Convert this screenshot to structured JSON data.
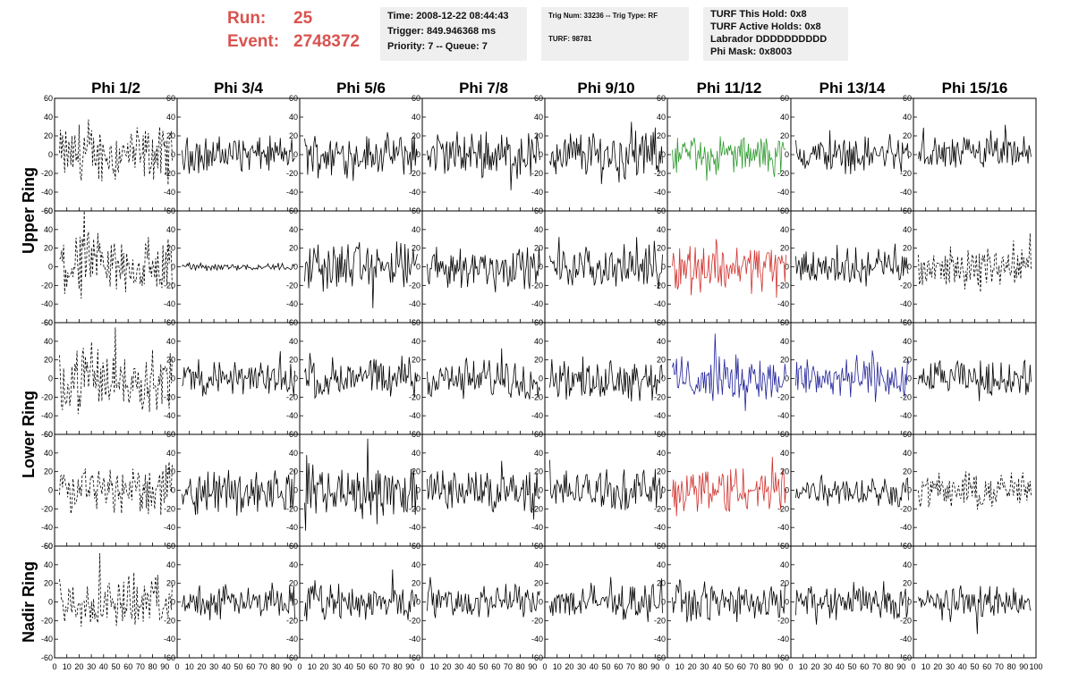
{
  "header": {
    "run_label": "Run:",
    "run_value": "25",
    "event_label": "Event:",
    "event_value": "2748372"
  },
  "info_boxes": {
    "box1": [
      "Time: 2008-12-22 08:44:43",
      "Trigger: 849.946368 ms",
      "Priority: 7 -- Queue: 7"
    ],
    "box2": [
      "Trig Num: 33236 -- Trig Type: RF",
      "",
      "TURF: 98781"
    ],
    "box3": [
      "TURF This Hold: 0x8",
      "TURF Active Holds: 0x8",
      "Labrador DDDDDDDDDD",
      "Phi Mask: 0x8003"
    ]
  },
  "chart_data": {
    "type": "line",
    "columns": [
      "Phi 1/2",
      "Phi 3/4",
      "Phi 5/6",
      "Phi 7/8",
      "Phi 9/10",
      "Phi 11/12",
      "Phi 13/14",
      "Phi 15/16"
    ],
    "ring_labels": [
      "Upper Ring",
      "Lower Ring",
      "Nadir Ring"
    ],
    "rows_per_ring": [
      2,
      2,
      1
    ],
    "xlim": [
      0,
      100
    ],
    "ylim": [
      -60,
      60
    ],
    "x_ticks": [
      "0",
      "10",
      "20",
      "30",
      "40",
      "50",
      "60",
      "70",
      "80",
      "90"
    ],
    "x_tick_last": "100",
    "y_ticks": [
      "60",
      "40",
      "20",
      "0",
      "-20",
      "-40",
      "-60"
    ],
    "traces": [
      [
        "dash",
        "solid",
        "solid",
        "solid",
        "solid",
        "green",
        "solid",
        "solid"
      ],
      [
        "dash",
        "flat",
        "solid",
        "solid",
        "solid",
        "red",
        "solid",
        "dash"
      ],
      [
        "dash",
        "solid",
        "solid",
        "solid",
        "solid",
        "blue",
        "blue",
        "solid"
      ],
      [
        "dash",
        "solid",
        "solid",
        "solid",
        "solid",
        "red",
        "solid",
        "dash"
      ],
      [
        "dash",
        "solid",
        "solid",
        "solid",
        "solid",
        "solid",
        "solid",
        "solid"
      ]
    ],
    "amplitudes": [
      [
        22,
        14,
        16,
        18,
        20,
        14,
        14,
        14
      ],
      [
        26,
        3,
        20,
        16,
        16,
        20,
        14,
        15
      ],
      [
        25,
        14,
        16,
        16,
        16,
        18,
        17,
        14
      ],
      [
        20,
        17,
        21,
        17,
        16,
        20,
        12,
        15
      ],
      [
        20,
        13,
        14,
        13,
        14,
        15,
        13,
        13
      ]
    ],
    "colors": {
      "solid": "#000000",
      "dash": "#000000",
      "flat": "#000000",
      "green": "#2e9a2e",
      "red": "#d0302c",
      "blue": "#22249a"
    }
  }
}
